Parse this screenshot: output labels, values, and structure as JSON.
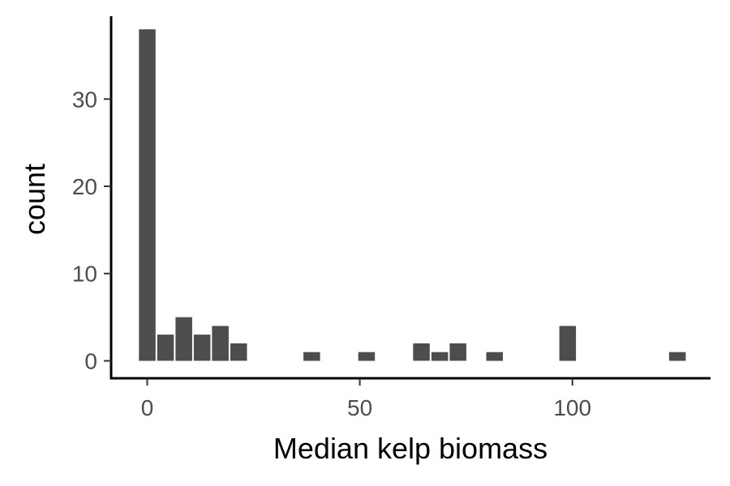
{
  "chart_data": {
    "type": "bar",
    "xlabel": "Median kelp biomass",
    "ylabel": "count",
    "xlim": [
      -8.5,
      132.5
    ],
    "ylim": [
      -2,
      39.5
    ],
    "x_ticks": [
      0,
      50,
      100
    ],
    "y_ticks": [
      0,
      10,
      20,
      30
    ],
    "bin_width": 4.3,
    "bar_color": "#4d4d4d",
    "grid": false,
    "bins": [
      {
        "x": 0,
        "count": 38
      },
      {
        "x": 4.3,
        "count": 3
      },
      {
        "x": 8.6,
        "count": 5
      },
      {
        "x": 12.9,
        "count": 3
      },
      {
        "x": 17.2,
        "count": 4
      },
      {
        "x": 21.5,
        "count": 2
      },
      {
        "x": 25.8,
        "count": 0
      },
      {
        "x": 30.1,
        "count": 0
      },
      {
        "x": 34.4,
        "count": 0
      },
      {
        "x": 38.7,
        "count": 1
      },
      {
        "x": 43.0,
        "count": 0
      },
      {
        "x": 47.3,
        "count": 0
      },
      {
        "x": 51.6,
        "count": 1
      },
      {
        "x": 55.9,
        "count": 0
      },
      {
        "x": 60.2,
        "count": 0
      },
      {
        "x": 64.5,
        "count": 2
      },
      {
        "x": 68.8,
        "count": 1
      },
      {
        "x": 73.1,
        "count": 2
      },
      {
        "x": 77.4,
        "count": 0
      },
      {
        "x": 81.7,
        "count": 1
      },
      {
        "x": 86.0,
        "count": 0
      },
      {
        "x": 90.3,
        "count": 0
      },
      {
        "x": 94.6,
        "count": 0
      },
      {
        "x": 98.9,
        "count": 4
      },
      {
        "x": 103.2,
        "count": 0
      },
      {
        "x": 107.5,
        "count": 0
      },
      {
        "x": 111.8,
        "count": 0
      },
      {
        "x": 116.1,
        "count": 0
      },
      {
        "x": 120.4,
        "count": 0
      },
      {
        "x": 124.7,
        "count": 1
      }
    ]
  }
}
